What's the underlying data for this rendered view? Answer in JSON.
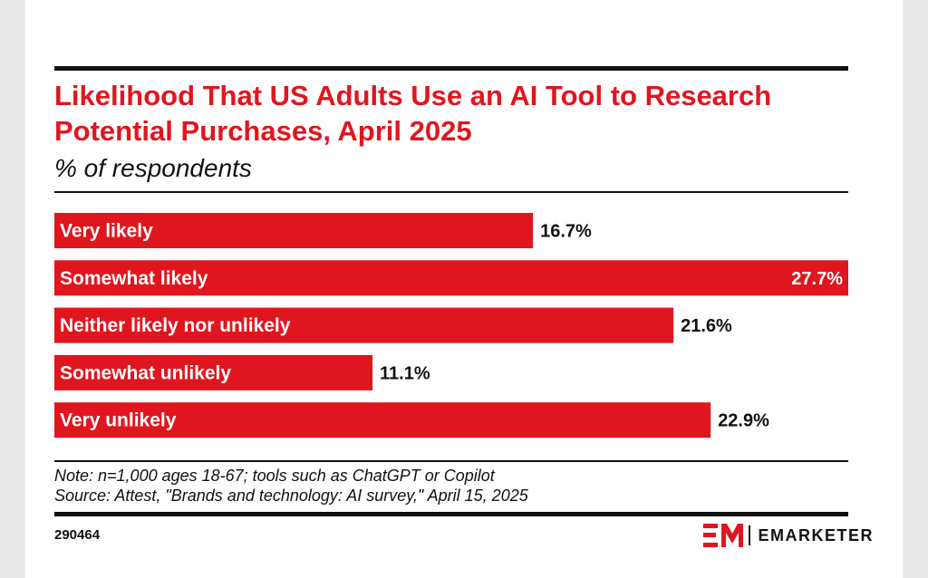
{
  "title": "Likelihood That US Adults Use an AI Tool to Research Potential Purchases, April 2025",
  "subtitle": "% of respondents",
  "note": "Note: n=1,000 ages 18-67; tools such as ChatGPT or Copilot",
  "source": "Source: Attest, \"Brands and technology: AI survey,\" April 15, 2025",
  "chart_id": "290464",
  "brand": {
    "name": "EMARKETER",
    "logo": "EM",
    "color": "#e0161f"
  },
  "colors": {
    "bar": "#e0161f",
    "text": "#111111"
  },
  "chart_data": {
    "type": "bar",
    "orientation": "horizontal",
    "categories": [
      "Very likely",
      "Somewhat likely",
      "Neither likely nor unlikely",
      "Somewhat unlikely",
      "Very unlikely"
    ],
    "values": [
      16.7,
      27.7,
      21.6,
      11.1,
      22.9
    ],
    "value_labels": [
      "16.7%",
      "27.7%",
      "21.6%",
      "11.1%",
      "22.9%"
    ],
    "xlim": [
      0,
      27.7
    ],
    "grid": false,
    "legend": "none"
  }
}
